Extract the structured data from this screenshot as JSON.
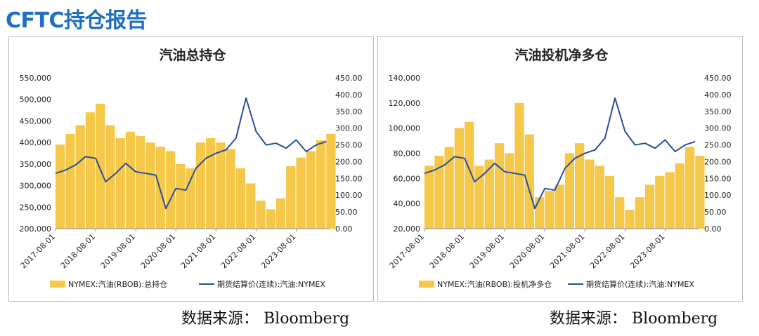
{
  "header": {
    "title": "CFTC持仓报告"
  },
  "sources": {
    "left": "数据来源：  Bloomberg",
    "right": "数据来源：  Bloomberg"
  },
  "colors": {
    "bar": "#f5c84a",
    "line": "#2a4f9c",
    "axis": "#8c8c8c",
    "text": "#222222"
  },
  "chart_data": [
    {
      "type": "bar+line",
      "title": "汽油总持仓",
      "x_start": "2017-08-01",
      "x_end": "2024-06-01",
      "x_tick_labels": [
        "2017-08-01",
        "2018-08-01",
        "2019-08-01",
        "2020-08-01",
        "2021-08-01",
        "2022-08-01",
        "2023-08-01"
      ],
      "y_left": {
        "min": 200000,
        "max": 550000,
        "ticks": [
          "200,000",
          "250,000",
          "300,000",
          "350,000",
          "400,000",
          "450,000",
          "500,000",
          "550,000"
        ]
      },
      "y_right": {
        "min": 0,
        "max": 450,
        "ticks": [
          "0.00",
          "50.00",
          "100.00",
          "150.00",
          "200.00",
          "250.00",
          "300.00",
          "350.00",
          "400.00",
          "450.00"
        ]
      },
      "bar_series": {
        "name": "NYMEX:汽油(RBOB):总持仓",
        "axis": "left",
        "dates": [
          "2017-08",
          "2017-11",
          "2018-02",
          "2018-05",
          "2018-08",
          "2018-11",
          "2019-02",
          "2019-05",
          "2019-08",
          "2019-11",
          "2020-02",
          "2020-05",
          "2020-08",
          "2020-11",
          "2021-02",
          "2021-05",
          "2021-08",
          "2021-11",
          "2022-02",
          "2022-05",
          "2022-08",
          "2022-11",
          "2023-02",
          "2023-05",
          "2023-08",
          "2023-11",
          "2024-02",
          "2024-05"
        ],
        "values": [
          395000,
          420000,
          440000,
          470000,
          490000,
          440000,
          410000,
          425000,
          415000,
          400000,
          390000,
          380000,
          350000,
          340000,
          400000,
          410000,
          400000,
          385000,
          340000,
          305000,
          265000,
          245000,
          270000,
          345000,
          365000,
          380000,
          405000,
          420000
        ]
      },
      "line_series": {
        "name": "期货结算价(连续):汽油:NYMEX",
        "axis": "right",
        "dates": [
          "2017-08",
          "2017-11",
          "2018-02",
          "2018-05",
          "2018-08",
          "2018-11",
          "2019-02",
          "2019-05",
          "2019-08",
          "2019-11",
          "2020-02",
          "2020-05",
          "2020-08",
          "2020-11",
          "2021-02",
          "2021-05",
          "2021-08",
          "2021-11",
          "2022-02",
          "2022-05",
          "2022-08",
          "2022-11",
          "2023-02",
          "2023-05",
          "2023-08",
          "2023-11",
          "2024-02",
          "2024-05"
        ],
        "values": [
          165,
          175,
          190,
          215,
          210,
          140,
          165,
          195,
          170,
          165,
          160,
          60,
          120,
          115,
          180,
          210,
          225,
          235,
          270,
          390,
          290,
          250,
          255,
          240,
          265,
          230,
          250,
          260
        ]
      }
    },
    {
      "type": "bar+line",
      "title": "汽油投机净多仓",
      "x_start": "2017-08-01",
      "x_end": "2024-06-01",
      "x_tick_labels": [
        "2017-08-01",
        "2018-08-01",
        "2019-08-01",
        "2020-08-01",
        "2021-08-01",
        "2022-08-01",
        "2023-08-01"
      ],
      "y_left": {
        "min": 20000,
        "max": 140000,
        "ticks": [
          "20,000",
          "40,000",
          "60,000",
          "80,000",
          "100,000",
          "120,000",
          "140,000"
        ]
      },
      "y_right": {
        "min": 0,
        "max": 450,
        "ticks": [
          "0.00",
          "50.00",
          "100.00",
          "150.00",
          "200.00",
          "250.00",
          "300.00",
          "350.00",
          "400.00",
          "450.00"
        ]
      },
      "bar_series": {
        "name": "NYMEX:汽油(RBOB):投机净多仓",
        "axis": "left",
        "dates": [
          "2017-08",
          "2017-11",
          "2018-02",
          "2018-05",
          "2018-08",
          "2018-11",
          "2019-02",
          "2019-05",
          "2019-08",
          "2019-11",
          "2020-02",
          "2020-05",
          "2020-08",
          "2020-11",
          "2021-02",
          "2021-05",
          "2021-08",
          "2021-11",
          "2022-02",
          "2022-05",
          "2022-08",
          "2022-11",
          "2023-02",
          "2023-05",
          "2023-08",
          "2023-11",
          "2024-02",
          "2024-05"
        ],
        "values": [
          70000,
          78000,
          85000,
          100000,
          105000,
          70000,
          75000,
          88000,
          80000,
          120000,
          95000,
          45000,
          50000,
          55000,
          80000,
          88000,
          75000,
          70000,
          62000,
          45000,
          35000,
          45000,
          55000,
          62000,
          65000,
          72000,
          85000,
          78000
        ]
      },
      "line_series": {
        "name": "期货结算价(连续):汽油:NYMEX",
        "axis": "right",
        "dates": [
          "2017-08",
          "2017-11",
          "2018-02",
          "2018-05",
          "2018-08",
          "2018-11",
          "2019-02",
          "2019-05",
          "2019-08",
          "2019-11",
          "2020-02",
          "2020-05",
          "2020-08",
          "2020-11",
          "2021-02",
          "2021-05",
          "2021-08",
          "2021-11",
          "2022-02",
          "2022-05",
          "2022-08",
          "2022-11",
          "2023-02",
          "2023-05",
          "2023-08",
          "2023-11",
          "2024-02",
          "2024-05"
        ],
        "values": [
          165,
          175,
          190,
          215,
          210,
          140,
          165,
          195,
          170,
          165,
          160,
          60,
          120,
          115,
          180,
          210,
          225,
          235,
          270,
          390,
          290,
          250,
          255,
          240,
          265,
          230,
          250,
          260
        ]
      }
    }
  ]
}
